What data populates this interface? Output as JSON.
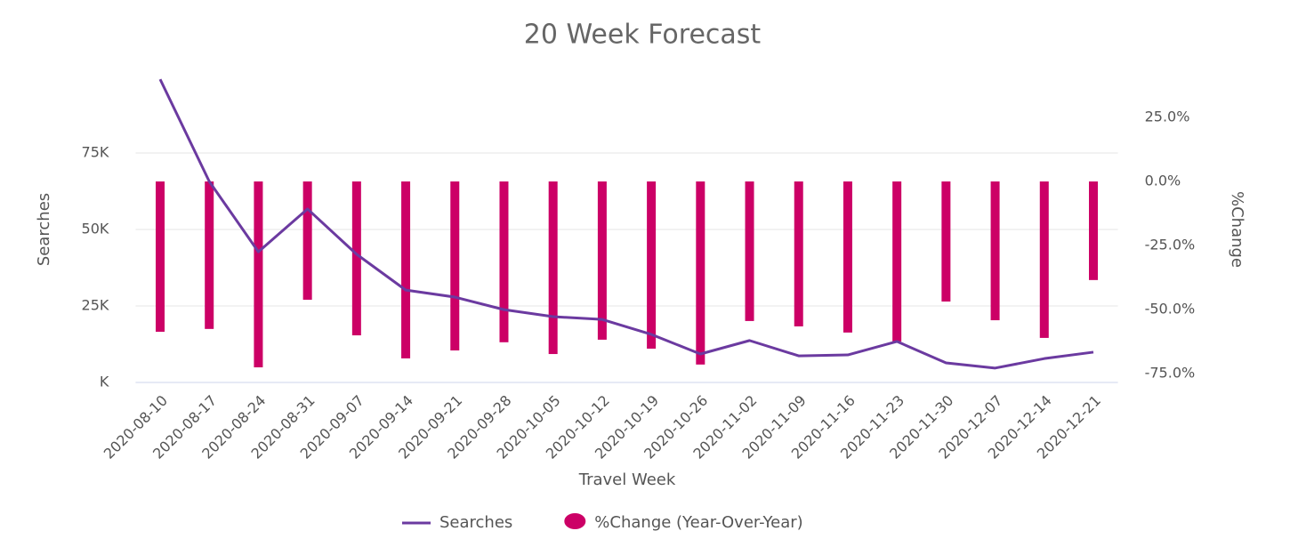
{
  "chart_data": {
    "type": "combo",
    "title": "20 Week Forecast",
    "xlabel": "Travel Week",
    "ylabel": "Searches",
    "y2label": "%Change",
    "categories": [
      "2020-08-10",
      "2020-08-17",
      "2020-08-24",
      "2020-08-31",
      "2020-09-07",
      "2020-09-14",
      "2020-09-21",
      "2020-09-28",
      "2020-10-05",
      "2020-10-12",
      "2020-10-19",
      "2020-10-26",
      "2020-11-02",
      "2020-11-09",
      "2020-11-16",
      "2020-11-23",
      "2020-11-30",
      "2020-12-07",
      "2020-12-14",
      "2020-12-21"
    ],
    "series": [
      {
        "name": "Searches",
        "type": "line",
        "color": "#6b3aa0",
        "values": [
          99100,
          65700,
          42700,
          56700,
          41900,
          30200,
          27900,
          23800,
          21500,
          20600,
          15700,
          9300,
          13700,
          8700,
          9000,
          13400,
          6400,
          4700,
          7800,
          9900
        ]
      },
      {
        "name": "%Change (Year-Over-Year)",
        "type": "bar",
        "axis": "y2",
        "color": "#cc0066",
        "values": [
          -58.7,
          -57.6,
          -72.6,
          -46.2,
          -60.1,
          -69.1,
          -66.0,
          -62.8,
          -67.4,
          -61.8,
          -65.3,
          -71.5,
          -54.5,
          -56.6,
          -59.0,
          -62.5,
          -46.9,
          -54.2,
          -61.1,
          -38.5
        ]
      }
    ],
    "ylim": [
      0,
      100000
    ],
    "yticks": [
      {
        "value": 0,
        "label": "K"
      },
      {
        "value": 25000,
        "label": "25K"
      },
      {
        "value": 50000,
        "label": "50K"
      },
      {
        "value": 75000,
        "label": "75K"
      }
    ],
    "y2lim": [
      -78.5,
      41
    ],
    "y2ticks": [
      {
        "value": -75,
        "label": "-75.0%"
      },
      {
        "value": -50,
        "label": "-50.0%"
      },
      {
        "value": -25,
        "label": "-25.0%"
      },
      {
        "value": 0,
        "label": "0.0%"
      },
      {
        "value": 25,
        "label": "25.0%"
      }
    ],
    "grid": true
  }
}
